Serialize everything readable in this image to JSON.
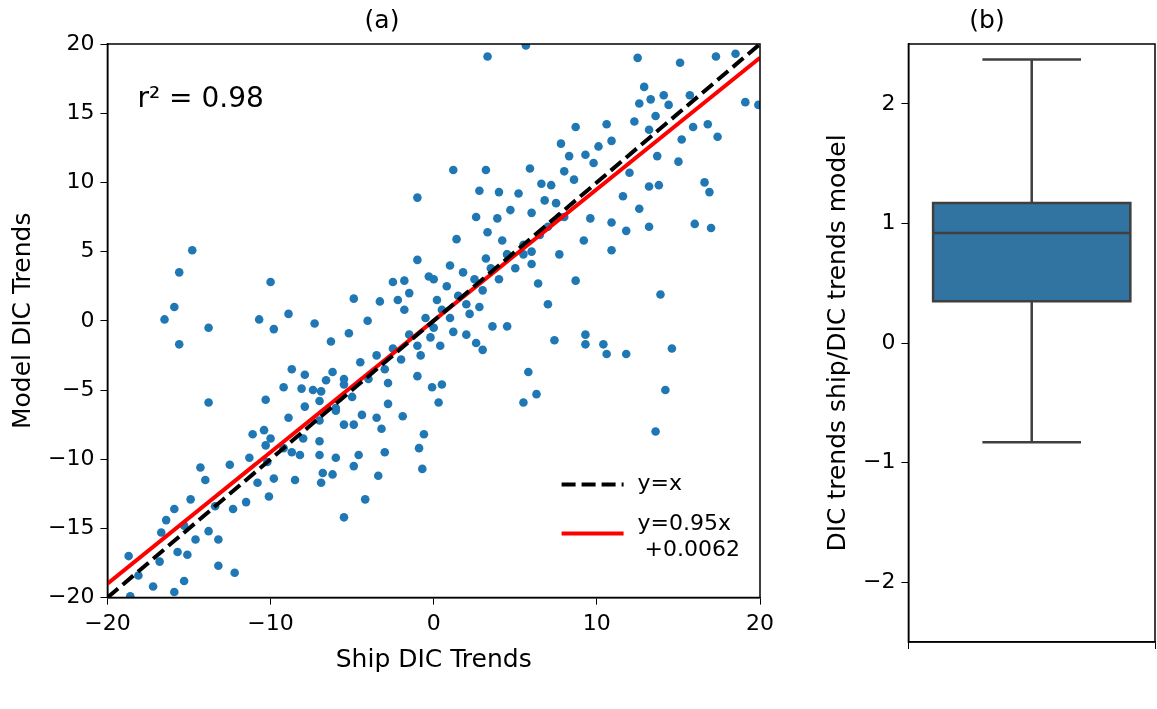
{
  "chart_data": [
    {
      "type": "scatter",
      "title": "(a)",
      "xlabel": "Ship DIC Trends",
      "ylabel": "Model DIC Trends",
      "xlim": [
        -20,
        20
      ],
      "ylim": [
        -20,
        20
      ],
      "xticks": [
        -20,
        -10,
        0,
        10,
        20
      ],
      "yticks": [
        -20,
        -15,
        -10,
        -5,
        0,
        5,
        10,
        15,
        20
      ],
      "legend": "bottom right",
      "annotations": [
        "r² = 0.98"
      ],
      "series": [
        {
          "color": "#1f77b4",
          "marker": "circle",
          "x": [
            5.65,
            3.3,
            12.5,
            15.1,
            17.3,
            18.5,
            19.1,
            19.9,
            12.9,
            12.6,
            13.3,
            14.1,
            15.7,
            14.4,
            13.6,
            12.3,
            13.2,
            15.9,
            16.8,
            17.4,
            15.2,
            15.0,
            13.7,
            16.6,
            16.9,
            16.0,
            17.0,
            13.2,
            11.8,
            10.9,
            13.8,
            13.2,
            12.6,
            11.6,
            12.0,
            10.9,
            13.9,
            8.7,
            7.0,
            8.7,
            10.6,
            7.8,
            10.1,
            8.3,
            9.3,
            10.9,
            1.2,
            3.2,
            5.9,
            2.8,
            4.0,
            5.2,
            6.6,
            7.2,
            8.0,
            8.6,
            9.8,
            2.6,
            1.4,
            3.9,
            4.7,
            6.0,
            6.8,
            7.7,
            9.6,
            9.2,
            7.7,
            5.5,
            4.5,
            3.3,
            6.0,
            6.4,
            -1.0,
            -14.8,
            -15.6,
            -10.0,
            -15.9,
            -1.0,
            -16.5,
            -10.7,
            -8.9,
            -4.9,
            -4.05,
            -2.5,
            -1.8,
            -3.3,
            -2.2,
            -1.5,
            -0.3,
            -13.8,
            -15.6,
            -9.8,
            -7.3,
            -13.8,
            -10.3,
            -8.7,
            -7.9,
            -9.2,
            -8.1,
            -7.4,
            -6.9,
            -6.3,
            -5.2,
            -6.6,
            -5.5,
            -6.2,
            -11.1,
            -10.4,
            -10.0,
            -10.3,
            -11.3,
            -10.2,
            -12.5,
            -9.2,
            -8.7,
            -8.2,
            -7.0,
            -8.9,
            -7.9,
            -7.0,
            -6.0,
            -5.5,
            -4.9,
            -4.4,
            -3.5,
            -3.2,
            -7.0,
            -6.0,
            -4.9,
            -6.8,
            -6.2,
            -4.6,
            -3.4,
            -3.0,
            -6.9,
            -8.5,
            -9.8,
            -10.8,
            -10.1,
            -11.5,
            -12.3,
            -13.4,
            -14.0,
            -14.3,
            -14.9,
            -15.9,
            -16.4,
            -15.3,
            -13.8,
            -13.2,
            -14.6,
            -16.7,
            -15.7,
            -15.1,
            -16.8,
            -18.1,
            -18.7,
            -13.2,
            -12.2,
            -15.3,
            -17.2,
            -15.9,
            -18.6,
            -5.5,
            -4.2,
            -0.6,
            -0.9,
            -0.7,
            -2.8,
            -1.9,
            7.4,
            9.3,
            9.3,
            10.4,
            10.6,
            11.8,
            14.6,
            5.8,
            6.3,
            5.5,
            14.2,
            13.6,
            0.3,
            0.5,
            -0.1,
            3.0,
            2.6,
            4.5,
            3.6,
            -3,
            -2.5,
            -2,
            -1.5,
            -1,
            -0.5,
            0,
            0.5,
            1,
            1.5,
            2,
            2.5,
            3,
            3.5,
            4,
            -4,
            -3.5,
            0.2,
            -0.8,
            1.2,
            2.2,
            -1.8,
            0.8,
            4.5,
            5,
            5.5,
            6,
            -4.5,
            -5,
            -2.8,
            1.8,
            3.2,
            -0.2,
            0.4,
            2.8,
            6.5,
            7,
            -6,
            -5.5,
            4.2,
            8,
            7.5,
            -7,
            -8,
            0,
            1,
            -1,
            2
          ],
          "values": [
            19.9,
            19.1,
            19.0,
            18.65,
            19.1,
            19.3,
            15.8,
            15.6,
            16.9,
            15.7,
            16.0,
            16.3,
            16.3,
            15.6,
            14.8,
            14.4,
            13.8,
            14.0,
            14.2,
            13.3,
            13.1,
            11.5,
            11.9,
            10.0,
            9.3,
            7.0,
            6.7,
            6.8,
            6.5,
            5.1,
            9.8,
            9.7,
            8.1,
            9.0,
            10.7,
            7.1,
            1.9,
            2.9,
            1.2,
            14.0,
            14.2,
            12.8,
            12.6,
            11.9,
            12.0,
            13.0,
            10.9,
            10.9,
            11.0,
            9.4,
            9.3,
            9.2,
            9.9,
            9.8,
            10.8,
            10.2,
            11.4,
            7.5,
            5.9,
            7.4,
            8.0,
            7.8,
            8.7,
            7.5,
            7.4,
            5.8,
            4.8,
            4.8,
            4.8,
            6.4,
            4.1,
            2.7,
            8.9,
            5.1,
            3.5,
            2.8,
            1.0,
            4.4,
            0.1,
            0.1,
            0.5,
            1.6,
            0.0,
            2.8,
            2.9,
            1.4,
            1.5,
            2.0,
            3.2,
            -0.5,
            -1.7,
            -0.6,
            -0.2,
            -5.9,
            -5.7,
            -3.5,
            -3.9,
            -4.8,
            -4.9,
            -5.0,
            -5.1,
            -1.5,
            -0.9,
            -4.3,
            -4.6,
            -3.7,
            -8.2,
            -7.9,
            -8.5,
            -9.0,
            -9.9,
            -10.2,
            -10.4,
            -9.2,
            -9.5,
            -9.7,
            -8.7,
            -7.0,
            -6.2,
            -5.8,
            -6.3,
            -7.5,
            -7.5,
            -6.8,
            -7.0,
            -7.8,
            -9.7,
            -9.9,
            -10.5,
            -11.0,
            -11.1,
            -9.7,
            -11.2,
            -9.5,
            -11.7,
            -11.5,
            -11.4,
            -11.7,
            -12.7,
            -13.1,
            -13.6,
            -13.4,
            -11.5,
            -10.6,
            -12.9,
            -13.6,
            -14.4,
            -14.8,
            -15.2,
            -15.8,
            -15.8,
            -15.3,
            -16.7,
            -16.9,
            -17.4,
            -18.4,
            -17.0,
            -17.7,
            -18.2,
            -18.8,
            -19.2,
            -19.6,
            -19.9,
            -14.2,
            -12.9,
            -8.2,
            -9.2,
            -10.7,
            -6.0,
            -6.9,
            -1.4,
            -1.0,
            -1.7,
            -1.7,
            -2.4,
            -2.4,
            -2.0,
            -3.7,
            -5.3,
            -5.9,
            -5.0,
            -8.0,
            -5.9,
            -4.6,
            -4.8,
            -2.1,
            -1.6,
            -0.4,
            -0.4,
            -3.5,
            -2,
            -2.8,
            -1,
            -1.8,
            0.2,
            -0.5,
            0.8,
            0.2,
            1.8,
            1.2,
            3,
            2.2,
            3.8,
            3,
            -4.2,
            -2.5,
            1.5,
            -2.5,
            -0.8,
            0.5,
            0.8,
            2.5,
            4.8,
            3.8,
            5.5,
            5,
            -3,
            -5.5,
            -4.5,
            3.5,
            4.5,
            -1.2,
            -1.8,
            1,
            6.2,
            6.8,
            -6.5,
            -4.2,
            5.8,
            7.5,
            8.5,
            -7.2,
            -8.5,
            3,
            4,
            -4,
            -1
          ]
        },
        {
          "type": "line",
          "name": "y=x",
          "color": "#000000",
          "line_style": "dashed",
          "marker": "none",
          "x": [
            -20,
            20
          ],
          "values": [
            -20,
            20
          ]
        },
        {
          "type": "line",
          "name": "y=0.95x +0.0062",
          "color": "#ff0000",
          "line_style": "solid",
          "marker": "none",
          "x": [
            -20,
            20
          ],
          "values": [
            -18.99,
            19.01
          ]
        }
      ]
    },
    {
      "type": "box",
      "title": "(b)",
      "ylabel": "DIC trends ship/DIC trends model",
      "categories": [
        null
      ],
      "color": "#3274a1",
      "tick_labels": "y",
      "ylim": [
        -2.5,
        2.5
      ],
      "yticks": [
        -2,
        -1,
        0,
        1,
        2
      ],
      "boxes": [
        {
          "low": -0.83,
          "q1": 0.35,
          "median": 0.92,
          "q3": 1.17,
          "high": 2.37
        }
      ]
    }
  ]
}
